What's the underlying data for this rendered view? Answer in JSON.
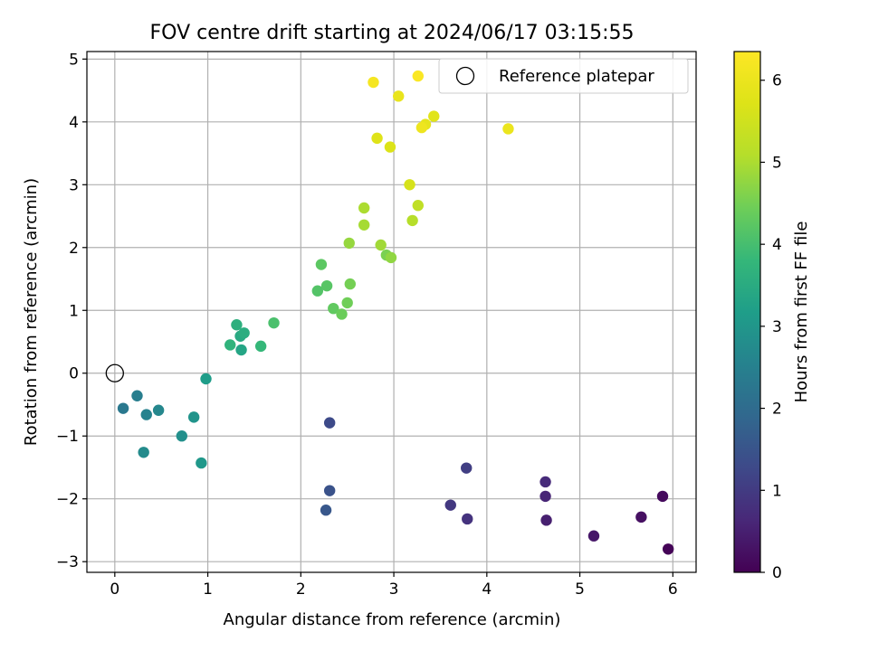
{
  "chart_data": {
    "type": "scatter",
    "title": "FOV centre drift starting at 2024/06/17 03:15:55",
    "xlabel": "Angular distance from reference (arcmin)",
    "ylabel": "Rotation from reference (arcmin)",
    "xlim": [
      -0.3,
      6.25
    ],
    "ylim": [
      -3.17,
      5.12
    ],
    "xticks": [
      0,
      1,
      2,
      3,
      4,
      5,
      6
    ],
    "yticks": [
      -3,
      -2,
      -1,
      0,
      1,
      2,
      3,
      4,
      5
    ],
    "grid": true,
    "colormap": "viridis",
    "colorbar": {
      "label": "Hours from first FF file",
      "range": [
        0,
        6.35
      ],
      "ticks": [
        0,
        1,
        2,
        3,
        4,
        5,
        6
      ]
    },
    "legend": {
      "placement": "top-right",
      "entries": [
        {
          "label": "Reference platepar",
          "marker": "hollow-circle"
        }
      ]
    },
    "reference_point": {
      "x": 0,
      "y": 0
    },
    "points": [
      {
        "x": 5.95,
        "y": -2.8,
        "h": 0.05
      },
      {
        "x": 5.89,
        "y": -1.96,
        "h": 0.15
      },
      {
        "x": 5.66,
        "y": -2.29,
        "h": 0.25
      },
      {
        "x": 5.15,
        "y": -2.59,
        "h": 0.35
      },
      {
        "x": 4.64,
        "y": -2.34,
        "h": 0.5
      },
      {
        "x": 4.63,
        "y": -1.96,
        "h": 0.6
      },
      {
        "x": 4.63,
        "y": -1.73,
        "h": 0.7
      },
      {
        "x": 3.79,
        "y": -2.32,
        "h": 0.85
      },
      {
        "x": 3.61,
        "y": -2.1,
        "h": 0.95
      },
      {
        "x": 3.78,
        "y": -1.51,
        "h": 1.05
      },
      {
        "x": 2.31,
        "y": -0.79,
        "h": 1.3
      },
      {
        "x": 2.31,
        "y": -1.87,
        "h": 1.45
      },
      {
        "x": 2.27,
        "y": -2.18,
        "h": 1.55
      },
      {
        "x": 0.09,
        "y": -0.56,
        "h": 2.3
      },
      {
        "x": 0.24,
        "y": -0.36,
        "h": 2.45
      },
      {
        "x": 0.34,
        "y": -0.66,
        "h": 2.55
      },
      {
        "x": 0.47,
        "y": -0.59,
        "h": 2.65
      },
      {
        "x": 0.31,
        "y": -1.26,
        "h": 2.75
      },
      {
        "x": 0.72,
        "y": -1.0,
        "h": 2.85
      },
      {
        "x": 0.85,
        "y": -0.7,
        "h": 2.95
      },
      {
        "x": 0.93,
        "y": -1.43,
        "h": 3.05
      },
      {
        "x": 0.98,
        "y": -0.09,
        "h": 3.15
      },
      {
        "x": 1.36,
        "y": 0.37,
        "h": 3.35
      },
      {
        "x": 1.35,
        "y": 0.59,
        "h": 3.45
      },
      {
        "x": 1.39,
        "y": 0.64,
        "h": 3.55
      },
      {
        "x": 1.31,
        "y": 0.77,
        "h": 3.6
      },
      {
        "x": 1.24,
        "y": 0.45,
        "h": 3.7
      },
      {
        "x": 1.57,
        "y": 0.43,
        "h": 3.8
      },
      {
        "x": 1.71,
        "y": 0.8,
        "h": 4.05
      },
      {
        "x": 2.18,
        "y": 1.31,
        "h": 4.15
      },
      {
        "x": 2.28,
        "y": 1.39,
        "h": 4.2
      },
      {
        "x": 2.22,
        "y": 1.73,
        "h": 4.25
      },
      {
        "x": 2.35,
        "y": 1.03,
        "h": 4.3
      },
      {
        "x": 2.44,
        "y": 0.94,
        "h": 4.4
      },
      {
        "x": 2.5,
        "y": 1.12,
        "h": 4.45
      },
      {
        "x": 2.53,
        "y": 1.42,
        "h": 4.5
      },
      {
        "x": 2.92,
        "y": 1.88,
        "h": 4.55
      },
      {
        "x": 2.97,
        "y": 1.84,
        "h": 4.75
      },
      {
        "x": 2.52,
        "y": 2.07,
        "h": 4.8
      },
      {
        "x": 2.86,
        "y": 2.04,
        "h": 4.9
      },
      {
        "x": 2.68,
        "y": 2.36,
        "h": 4.95
      },
      {
        "x": 2.68,
        "y": 2.63,
        "h": 5.0
      },
      {
        "x": 3.2,
        "y": 2.43,
        "h": 5.1
      },
      {
        "x": 3.26,
        "y": 2.67,
        "h": 5.25
      },
      {
        "x": 3.17,
        "y": 3.0,
        "h": 5.6
      },
      {
        "x": 2.96,
        "y": 3.6,
        "h": 5.7
      },
      {
        "x": 2.82,
        "y": 3.74,
        "h": 5.75
      },
      {
        "x": 3.43,
        "y": 4.09,
        "h": 5.8
      },
      {
        "x": 3.34,
        "y": 3.96,
        "h": 5.9
      },
      {
        "x": 4.23,
        "y": 3.89,
        "h": 6.0
      },
      {
        "x": 3.3,
        "y": 3.91,
        "h": 6.05
      },
      {
        "x": 3.05,
        "y": 4.41,
        "h": 5.95
      },
      {
        "x": 2.78,
        "y": 4.63,
        "h": 6.2
      },
      {
        "x": 3.26,
        "y": 4.73,
        "h": 6.3
      }
    ]
  }
}
